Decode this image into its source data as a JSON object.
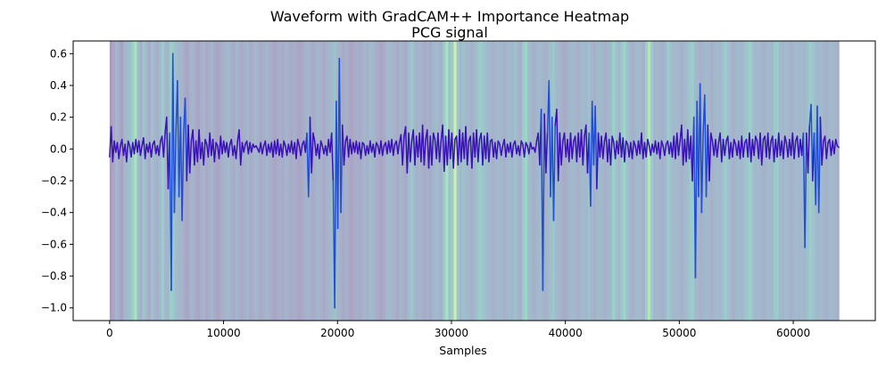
{
  "chart_data": {
    "type": "line",
    "title": "Waveform with GradCAM++ Importance Heatmap",
    "subtitle": "PCG signal",
    "xlabel": "Samples",
    "ylabel": "",
    "xlim": [
      -3200,
      67200
    ],
    "ylim": [
      -1.08,
      0.68
    ],
    "xticks": [
      0,
      10000,
      20000,
      30000,
      40000,
      50000,
      60000
    ],
    "yticks": [
      0.6,
      0.4,
      0.2,
      0.0,
      -0.2,
      -0.4,
      -0.6,
      -0.8,
      -1.0
    ],
    "xtick_labels": [
      "0",
      "10000",
      "20000",
      "30000",
      "40000",
      "50000",
      "60000"
    ],
    "ytick_labels": [
      "0.6",
      "0.4",
      "0.2",
      "0.0",
      "−0.2",
      "−0.4",
      "−0.6",
      "−0.8",
      "−1.0"
    ],
    "grid": false,
    "heatmap": {
      "x_range": [
        0,
        64000
      ],
      "colormap": "viridis",
      "alpha": 0.45,
      "importance": [
        0.1,
        0.18,
        0.3,
        0.22,
        0.12,
        0.3,
        0.35,
        0.4,
        0.55,
        0.7,
        0.35,
        0.25,
        0.45,
        0.3,
        0.2,
        0.4,
        0.3,
        0.25,
        0.35,
        0.5,
        0.3,
        0.3,
        0.55,
        0.45,
        0.35,
        0.3,
        0.3,
        0.2,
        0.15,
        0.25,
        0.3,
        0.2,
        0.15,
        0.25,
        0.3,
        0.2,
        0.25,
        0.3,
        0.2,
        0.15,
        0.2,
        0.25,
        0.3,
        0.35,
        0.25,
        0.2,
        0.3,
        0.25,
        0.2,
        0.25,
        0.3,
        0.2,
        0.25,
        0.3,
        0.25,
        0.2,
        0.25,
        0.3,
        0.25,
        0.2,
        0.15,
        0.2,
        0.25,
        0.2,
        0.3,
        0.25,
        0.2,
        0.25,
        0.2,
        0.15,
        0.2,
        0.25,
        0.3,
        0.25,
        0.2,
        0.25,
        0.3,
        0.25,
        0.2,
        0.25,
        0.3,
        0.35,
        0.4,
        0.3,
        0.25,
        0.2,
        0.25,
        0.2,
        0.15,
        0.2,
        0.25,
        0.2,
        0.25,
        0.3,
        0.25,
        0.35,
        0.3,
        0.25,
        0.2,
        0.15,
        0.2,
        0.3,
        0.35,
        0.3,
        0.25,
        0.2,
        0.3,
        0.25,
        0.2,
        0.35,
        0.45,
        0.35,
        0.25,
        0.3,
        0.25,
        0.2,
        0.25,
        0.2,
        0.3,
        0.35,
        0.3,
        0.25,
        0.5,
        0.7,
        0.4,
        0.5,
        0.85,
        0.45,
        0.3,
        0.4,
        0.35,
        0.3,
        0.25,
        0.3,
        0.4,
        0.5,
        0.45,
        0.4,
        0.35,
        0.3,
        0.25,
        0.3,
        0.35,
        0.3,
        0.25,
        0.3,
        0.35,
        0.3,
        0.4,
        0.3,
        0.25,
        0.5,
        0.6,
        0.35,
        0.3,
        0.25,
        0.3,
        0.35,
        0.3,
        0.25,
        0.3,
        0.4,
        0.45,
        0.35,
        0.3,
        0.25,
        0.2,
        0.25,
        0.3,
        0.35,
        0.3,
        0.25,
        0.3,
        0.35,
        0.3,
        0.4,
        0.3,
        0.25,
        0.3,
        0.35,
        0.3,
        0.25,
        0.3,
        0.35,
        0.55,
        0.4,
        0.3,
        0.45,
        0.6,
        0.4,
        0.3,
        0.25,
        0.3,
        0.35,
        0.3,
        0.25,
        0.5,
        0.75,
        0.5,
        0.3,
        0.35,
        0.3,
        0.25,
        0.3,
        0.5,
        0.4,
        0.3,
        0.35,
        0.3,
        0.25,
        0.3,
        0.35,
        0.45,
        0.5,
        0.35,
        0.3,
        0.25,
        0.3,
        0.35,
        0.3,
        0.25,
        0.3,
        0.35,
        0.3,
        0.4,
        0.5,
        0.4,
        0.3,
        0.25,
        0.3,
        0.35,
        0.3,
        0.4,
        0.45,
        0.55,
        0.4,
        0.3,
        0.35,
        0.3,
        0.25,
        0.3,
        0.35,
        0.3,
        0.45,
        0.5,
        0.35,
        0.3,
        0.35,
        0.3,
        0.25,
        0.3,
        0.35,
        0.3,
        0.35,
        0.3,
        0.4,
        0.5,
        0.45,
        0.35,
        0.3,
        0.35,
        0.3,
        0.25,
        0.3,
        0.35,
        0.3,
        0.25
      ]
    },
    "series": [
      {
        "type": "line",
        "color_low": "#3a10b8",
        "color_high": "#1f4fd6",
        "x_range": [
          0,
          64000
        ],
        "values": [
          -0.05,
          0.14,
          -0.08,
          0.05,
          -0.02,
          0.04,
          -0.06,
          0.02,
          0.06,
          -0.04,
          0.03,
          -0.08,
          0.05,
          0.02,
          -0.05,
          0.04,
          -0.03,
          0.06,
          -0.02,
          0.05,
          -0.04,
          0.02,
          0.07,
          -0.06,
          0.03,
          -0.02,
          0.04,
          -0.05,
          0.03,
          0.05,
          -0.03,
          0.02,
          -0.04,
          0.05,
          0.08,
          -0.05,
          0.1,
          0.2,
          -0.25,
          0.1,
          -0.89,
          0.6,
          -0.4,
          0.1,
          0.43,
          -0.3,
          0.2,
          -0.45,
          0.1,
          0.32,
          -0.2,
          0.15,
          -0.15,
          0.05,
          0.12,
          -0.1,
          0.05,
          -0.08,
          0.12,
          -0.06,
          0.04,
          -0.1,
          0.06,
          0.03,
          -0.05,
          0.1,
          -0.04,
          0.06,
          -0.08,
          0.04,
          0.02,
          -0.06,
          0.08,
          -0.03,
          0.05,
          -0.02,
          0.04,
          -0.05,
          0.03,
          0.06,
          -0.04,
          0.02,
          -0.06,
          0.05,
          0.12,
          -0.1,
          0.04,
          -0.02,
          0.03,
          0.05,
          -0.03,
          0.04,
          -0.02,
          0.03,
          0.01,
          0.02,
          0.0,
          -0.02,
          0.04,
          -0.03,
          0.02,
          0.05,
          -0.04,
          0.03,
          -0.02,
          0.04,
          -0.05,
          0.05,
          -0.03,
          0.06,
          -0.04,
          0.03,
          -0.05,
          0.05,
          0.02,
          -0.04,
          0.03,
          -0.02,
          0.05,
          -0.03,
          0.04,
          -0.06,
          0.06,
          0.02,
          -0.04,
          0.03,
          0.05,
          -0.02,
          0.1,
          -0.3,
          0.2,
          -0.15,
          0.1,
          0.05,
          -0.04,
          0.03,
          -0.06,
          0.05,
          0.02,
          -0.03,
          0.02,
          -0.04,
          0.06,
          -0.02,
          0.1,
          -0.2,
          -1.0,
          0.3,
          -0.5,
          0.57,
          -0.4,
          0.15,
          -0.1,
          0.05,
          0.08,
          -0.05,
          0.06,
          -0.03,
          0.04,
          -0.02,
          0.05,
          -0.03,
          0.04,
          -0.06,
          0.04,
          0.03,
          -0.04,
          0.02,
          -0.03,
          0.05,
          -0.02,
          0.03,
          -0.05,
          0.04,
          0.02,
          -0.03,
          0.05,
          -0.04,
          0.02,
          0.04,
          -0.03,
          0.05,
          -0.02,
          0.06,
          -0.04,
          0.03,
          0.05,
          -0.03,
          0.04,
          0.09,
          -0.1,
          0.08,
          0.14,
          -0.15,
          0.1,
          -0.08,
          0.05,
          0.12,
          -0.1,
          0.08,
          -0.05,
          0.1,
          -0.08,
          0.15,
          -0.1,
          0.06,
          0.12,
          -0.12,
          0.08,
          -0.1,
          0.1,
          0.06,
          -0.06,
          0.1,
          -0.08,
          0.05,
          0.15,
          -0.14,
          0.08,
          -0.1,
          0.12,
          -0.06,
          0.1,
          -0.12,
          0.06,
          0.08,
          -0.1,
          0.12,
          -0.08,
          0.1,
          -0.06,
          0.14,
          -0.1,
          0.05,
          0.08,
          -0.12,
          0.1,
          -0.05,
          0.12,
          -0.08,
          0.06,
          0.1,
          -0.1,
          0.08,
          -0.06,
          0.1,
          -0.08,
          0.05,
          0.06,
          -0.05,
          0.04,
          -0.06,
          0.05,
          0.03,
          -0.04,
          0.02,
          0.06,
          -0.05,
          0.03,
          -0.02,
          0.04,
          -0.05,
          0.03,
          0.05,
          -0.03,
          0.02,
          -0.04,
          0.05,
          0.03,
          -0.05,
          0.04,
          0.02,
          -0.03,
          0.04,
          0.0,
          0.01,
          -0.02,
          0.05,
          0.1,
          -0.1,
          0.25,
          -0.89,
          0.22,
          -0.15,
          0.1,
          0.43,
          -0.3,
          0.2,
          -0.45,
          0.15,
          0.25,
          -0.2,
          0.1,
          -0.1,
          0.05,
          0.1,
          -0.05,
          0.06,
          -0.08,
          0.1,
          -0.06,
          0.05,
          0.08,
          -0.08,
          0.1,
          -0.05,
          0.12,
          -0.1,
          0.08,
          0.15,
          -0.15,
          0.1,
          -0.36,
          0.3,
          -0.1,
          0.27,
          -0.25,
          0.1,
          -0.05,
          0.08,
          -0.06,
          0.05,
          0.1,
          -0.08,
          0.06,
          -0.1,
          0.08,
          0.04,
          -0.06,
          0.05,
          -0.03,
          0.1,
          -0.05,
          0.07,
          -0.08,
          0.05,
          0.03,
          -0.05,
          0.04,
          -0.06,
          0.05,
          0.02,
          -0.04,
          0.05,
          -0.03,
          0.1,
          -0.06,
          0.04,
          -0.05,
          0.06,
          0.02,
          -0.04,
          0.03,
          -0.02,
          0.05,
          -0.03,
          0.04,
          -0.06,
          0.05,
          0.02,
          -0.04,
          0.03,
          0.05,
          -0.03,
          0.04,
          -0.05,
          0.08,
          -0.06,
          0.1,
          -0.04,
          0.05,
          0.15,
          -0.1,
          0.06,
          -0.08,
          0.12,
          -0.06,
          0.08,
          -0.2,
          0.2,
          -0.81,
          0.3,
          -0.3,
          0.41,
          -0.4,
          0.1,
          0.34,
          -0.3,
          0.15,
          -0.2,
          0.1,
          0.05,
          -0.04,
          0.06,
          -0.05,
          0.04,
          0.1,
          -0.08,
          0.06,
          -0.04,
          0.05,
          0.08,
          -0.06,
          0.04,
          -0.05,
          0.06,
          0.03,
          -0.04,
          0.05,
          -0.06,
          0.08,
          -0.05,
          0.04,
          0.06,
          -0.05,
          0.1,
          -0.08,
          0.06,
          -0.04,
          0.08,
          0.05,
          -0.06,
          0.1,
          -0.1,
          0.06,
          0.08,
          -0.05,
          0.1,
          -0.06,
          0.05,
          0.08,
          -0.08,
          0.06,
          -0.05,
          0.1,
          -0.04,
          0.05,
          -0.06,
          0.08,
          0.04,
          -0.05,
          0.06,
          -0.04,
          0.1,
          -0.06,
          0.05,
          0.08,
          -0.05,
          0.06,
          -0.04,
          0.1,
          -0.62,
          0.1,
          -0.15,
          0.15,
          0.28,
          -0.2,
          0.1,
          -0.35,
          0.27,
          -0.4,
          0.2,
          -0.1,
          0.05,
          0.08,
          -0.06,
          0.04,
          0.06,
          -0.04,
          0.05,
          -0.03,
          0.06,
          0.02,
          0.01
        ]
      }
    ]
  }
}
